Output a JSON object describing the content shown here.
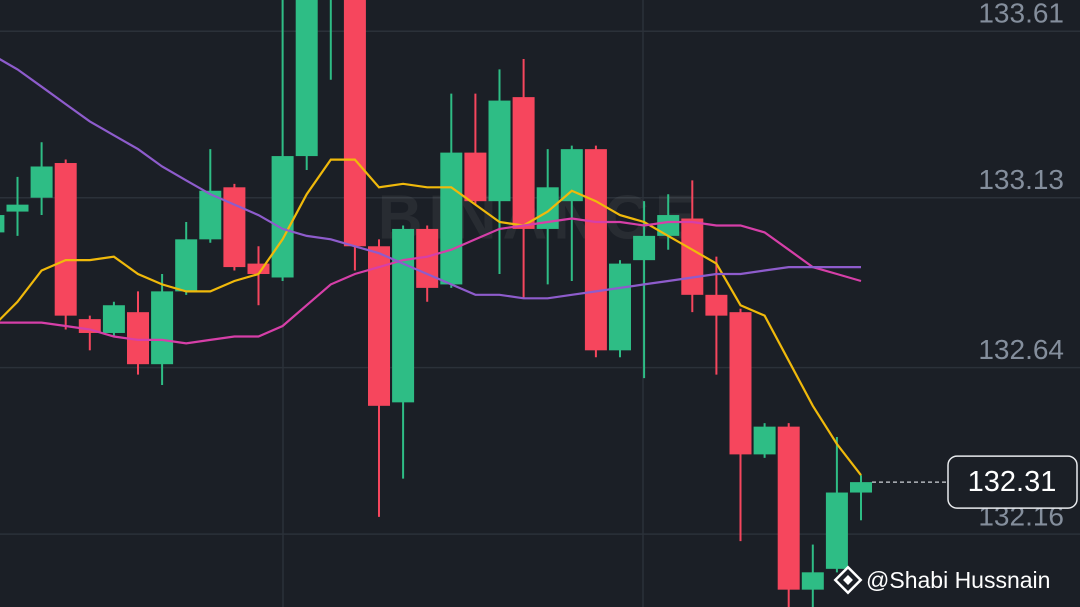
{
  "chart_data": {
    "type": "candlestick",
    "watermark": "BINANCE",
    "credit": "@Shabi Hussnain",
    "ylim": [
      131.95,
      133.7
    ],
    "yticks": [
      132.16,
      132.64,
      133.13,
      133.61
    ],
    "grid": true,
    "up_color": "#2ebd85",
    "down_color": "#f6465d",
    "last_price": 132.31,
    "open": [
      133.03,
      133.09,
      133.13,
      133.23,
      132.78,
      132.74,
      132.8,
      132.65,
      132.86,
      133.01,
      133.16,
      132.94,
      132.9,
      133.25,
      133.78,
      133.8,
      132.99,
      132.54,
      133.04,
      132.88,
      133.26,
      133.12,
      133.42,
      133.04,
      133.12,
      133.27,
      132.69,
      132.95,
      133.02,
      133.07,
      132.85,
      132.8,
      132.39,
      132.47,
      132.0,
      132.06,
      132.28
    ],
    "high": [
      133.12,
      133.19,
      133.29,
      133.24,
      132.79,
      132.83,
      132.86,
      132.91,
      133.06,
      133.27,
      133.17,
      132.99,
      133.7,
      133.79,
      133.88,
      133.82,
      133.01,
      133.05,
      133.05,
      133.43,
      133.43,
      133.5,
      133.53,
      133.27,
      133.28,
      133.28,
      132.95,
      133.12,
      133.14,
      133.18,
      132.96,
      132.81,
      132.48,
      132.48,
      132.13,
      132.44,
      132.33
    ],
    "low": [
      133.01,
      133.02,
      133.08,
      132.75,
      132.69,
      132.73,
      132.62,
      132.59,
      132.85,
      133.0,
      132.92,
      132.82,
      132.89,
      133.21,
      133.47,
      132.92,
      132.21,
      132.32,
      132.83,
      132.87,
      133.11,
      132.91,
      132.84,
      132.88,
      132.89,
      132.67,
      132.67,
      132.61,
      132.98,
      132.8,
      132.62,
      132.14,
      132.38,
      131.95,
      131.95,
      132.05,
      132.2
    ],
    "close": [
      133.08,
      133.11,
      133.22,
      132.79,
      132.74,
      132.82,
      132.65,
      132.86,
      133.01,
      133.15,
      132.93,
      132.91,
      133.25,
      133.76,
      133.85,
      132.99,
      132.53,
      133.04,
      132.87,
      133.26,
      133.12,
      133.41,
      133.04,
      133.16,
      133.27,
      132.69,
      132.94,
      133.02,
      133.08,
      132.85,
      132.79,
      132.39,
      132.47,
      132.0,
      132.05,
      132.28,
      132.31
    ],
    "lines": [
      {
        "color": "#f0b90b",
        "values": [
          132.76,
          132.83,
          132.92,
          132.95,
          132.95,
          132.96,
          132.91,
          132.88,
          132.86,
          132.86,
          132.89,
          132.91,
          133.01,
          133.14,
          133.24,
          133.24,
          133.16,
          133.17,
          133.16,
          133.16,
          133.11,
          133.06,
          133.05,
          133.09,
          133.15,
          133.12,
          133.08,
          133.06,
          133.02,
          132.98,
          132.94,
          132.82,
          132.79,
          132.66,
          132.53,
          132.42,
          132.33
        ]
      },
      {
        "color": "#d63fa8",
        "values": [
          132.77,
          132.77,
          132.77,
          132.76,
          132.75,
          132.73,
          132.72,
          132.72,
          132.71,
          132.72,
          132.73,
          132.73,
          132.76,
          132.82,
          132.88,
          132.91,
          132.93,
          132.95,
          132.96,
          132.98,
          133.01,
          133.04,
          133.05,
          133.06,
          133.07,
          133.06,
          133.06,
          133.05,
          133.06,
          133.06,
          133.05,
          133.05,
          133.03,
          132.98,
          132.93,
          132.91,
          132.89
        ]
      },
      {
        "color": "#8e5ccc",
        "values": [
          133.54,
          133.5,
          133.45,
          133.4,
          133.35,
          133.31,
          133.27,
          133.22,
          133.18,
          133.14,
          133.11,
          133.08,
          133.04,
          133.02,
          133.01,
          132.99,
          132.97,
          132.94,
          132.91,
          132.88,
          132.85,
          132.85,
          132.84,
          132.84,
          132.85,
          132.86,
          132.87,
          132.88,
          132.89,
          132.9,
          132.91,
          132.91,
          132.92,
          132.93,
          132.93,
          132.93,
          132.93
        ]
      }
    ]
  }
}
